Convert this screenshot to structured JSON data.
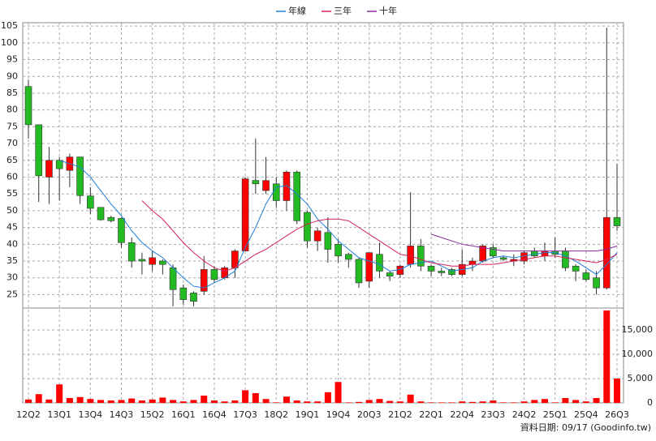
{
  "chart_data": {
    "type": "candlestick",
    "legend_position": "top",
    "grid": true,
    "up_color": "#ff0000",
    "down_color": "#22bb22",
    "categories": [
      "12Q2",
      null,
      null,
      "13Q1",
      null,
      null,
      "13Q4",
      null,
      null,
      "14Q3",
      null,
      null,
      "15Q2",
      null,
      null,
      "16Q1",
      null,
      null,
      "16Q4",
      null,
      null,
      "17Q3",
      null,
      null,
      "18Q2",
      null,
      null,
      "19Q1",
      null,
      null,
      "19Q4",
      null,
      null,
      "20Q3",
      null,
      null,
      "21Q2",
      null,
      null,
      "22Q1",
      null,
      null,
      "22Q4",
      null,
      null,
      "23Q3",
      null,
      null,
      "24Q2",
      null,
      null,
      "25Q1",
      null,
      null,
      "25Q4",
      null,
      null,
      "26Q3"
    ],
    "open": [
      87,
      75.6,
      60,
      65,
      62,
      66,
      54.4,
      51,
      48,
      47.7,
      40.5,
      35.5,
      34,
      35,
      33,
      27,
      25.5,
      26,
      32.5,
      30,
      33,
      38,
      59,
      56,
      58,
      53,
      61.5,
      49.5,
      41,
      43.5,
      40,
      37,
      35.5,
      29,
      37,
      31.5,
      31,
      34,
      39.5,
      33.5,
      32,
      32.5,
      31,
      34,
      35,
      39,
      36,
      35,
      35,
      38,
      36.5,
      38,
      38,
      33.5,
      31.5,
      30,
      27,
      48
    ],
    "high": [
      89,
      75.6,
      69,
      66,
      67,
      66,
      57,
      51,
      48.5,
      48,
      42,
      37.5,
      38,
      35.5,
      34,
      28,
      26,
      36.5,
      33.5,
      33.5,
      38.5,
      60,
      71.5,
      66,
      60,
      62,
      62,
      50,
      45,
      48,
      41.5,
      37.5,
      36,
      37.5,
      40.5,
      32,
      34,
      55.5,
      41.5,
      34,
      33,
      33,
      38.5,
      36,
      40,
      40,
      36.5,
      37,
      38,
      39,
      40.5,
      42,
      39,
      34,
      32.5,
      32,
      104.5,
      64
    ],
    "low": [
      71.5,
      52.6,
      52,
      53,
      57,
      52,
      49,
      47,
      46.5,
      39,
      33,
      31,
      32,
      31,
      21.5,
      22,
      21.5,
      25,
      28.5,
      29.5,
      30,
      38,
      55,
      55,
      51,
      50,
      46,
      39,
      38,
      34.5,
      34.5,
      33,
      27,
      27,
      30,
      29,
      30,
      33,
      32,
      30.5,
      30.5,
      30.5,
      30.5,
      32,
      34.5,
      36,
      35,
      33.5,
      34,
      36,
      35,
      36,
      32,
      29,
      29,
      25,
      26.5,
      44
    ],
    "close": [
      75.6,
      60.4,
      65,
      62.5,
      66,
      54.5,
      50.7,
      47.3,
      47,
      40.5,
      35,
      35,
      36,
      34,
      26.5,
      23.5,
      23,
      32.5,
      29.5,
      33,
      38,
      59.5,
      58,
      59,
      53,
      61.5,
      47,
      41,
      44,
      38.5,
      36.5,
      35.5,
      28.5,
      37.5,
      32,
      30.5,
      33.5,
      39.5,
      33.5,
      32,
      31.5,
      31,
      34,
      35,
      39.5,
      36.5,
      35.5,
      35.5,
      37.5,
      36.5,
      38,
      37,
      33,
      32,
      29.5,
      27,
      48,
      45.5
    ],
    "ylim": [
      21,
      106
    ],
    "yticks": [
      25,
      30,
      35,
      40,
      45,
      50,
      55,
      60,
      65,
      70,
      75,
      80,
      85,
      90,
      95,
      100,
      105
    ],
    "series": [
      {
        "name": "年線",
        "color": "#1e7fd8",
        "values": [
          null,
          null,
          null,
          65,
          64,
          63,
          60,
          56,
          52,
          48.5,
          44,
          40.5,
          38,
          36,
          33,
          30,
          27.5,
          27,
          28.5,
          30,
          32,
          39,
          45,
          52,
          57,
          57.5,
          55,
          52,
          47.5,
          44.5,
          41,
          38.5,
          36,
          35,
          34,
          32,
          32.5,
          34,
          34.5,
          35,
          33.5,
          32,
          32.5,
          33,
          35,
          36,
          36.5,
          36,
          36.5,
          37,
          37.5,
          37.5,
          36.5,
          35,
          33,
          31,
          34,
          37.5
        ]
      },
      {
        "name": "三年",
        "color": "#d4245a",
        "values": [
          null,
          null,
          null,
          null,
          null,
          null,
          null,
          null,
          null,
          null,
          null,
          53,
          50,
          47.5,
          44,
          40.5,
          37.5,
          35,
          33,
          32,
          33,
          35,
          37,
          38.5,
          40.5,
          42.5,
          44.5,
          46,
          47,
          47.5,
          47.5,
          47,
          45,
          43,
          41,
          39,
          37,
          36.5,
          35.5,
          34.5,
          34,
          33.5,
          33.5,
          34,
          34,
          34,
          34.5,
          35,
          35.5,
          36,
          36.5,
          36.5,
          36,
          35.5,
          35,
          34.5,
          35.5,
          37
        ]
      },
      {
        "name": "十年",
        "color": "#8a2a9c",
        "values": [
          null,
          null,
          null,
          null,
          null,
          null,
          null,
          null,
          null,
          null,
          null,
          null,
          null,
          null,
          null,
          null,
          null,
          null,
          null,
          null,
          null,
          null,
          null,
          null,
          null,
          null,
          null,
          null,
          null,
          null,
          null,
          null,
          null,
          null,
          null,
          null,
          null,
          null,
          null,
          43,
          42,
          41,
          40,
          39.5,
          39,
          38.5,
          38,
          38,
          38,
          38,
          38,
          38,
          38,
          38,
          38,
          38,
          38.5,
          39.5
        ]
      }
    ],
    "volume": {
      "color": "#ff0000",
      "values": [
        700,
        1800,
        700,
        3800,
        1000,
        1200,
        800,
        600,
        500,
        600,
        900,
        500,
        700,
        1100,
        600,
        300,
        600,
        1500,
        500,
        300,
        500,
        2600,
        2000,
        800,
        100,
        1300,
        500,
        300,
        300,
        2200,
        4300,
        100,
        200,
        600,
        800,
        400,
        300,
        1700,
        300,
        100,
        100,
        100,
        300,
        200,
        300,
        500,
        100,
        100,
        300,
        600,
        800,
        100,
        1000,
        600,
        300,
        1000,
        19000,
        5000
      ],
      "ylim": [
        0,
        19500
      ],
      "yticks": [
        0,
        {
          "value": 5000,
          "label": "5,000"
        },
        {
          "value": 10000,
          "label": "10,000"
        },
        {
          "value": 15000,
          "label": "15,000"
        }
      ]
    },
    "footnote": "資料日期: 09/17  (Goodinfo.tw)"
  }
}
